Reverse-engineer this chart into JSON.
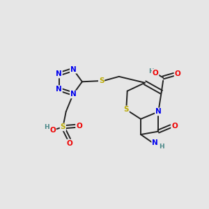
{
  "background_color": "#e6e6e6",
  "atom_colors": {
    "N": "#0000EE",
    "O": "#EE0000",
    "S": "#BBAA00",
    "H": "#4a8888"
  },
  "bond_color": "#222222",
  "bond_lw": 1.4,
  "fontsize": 7.5
}
